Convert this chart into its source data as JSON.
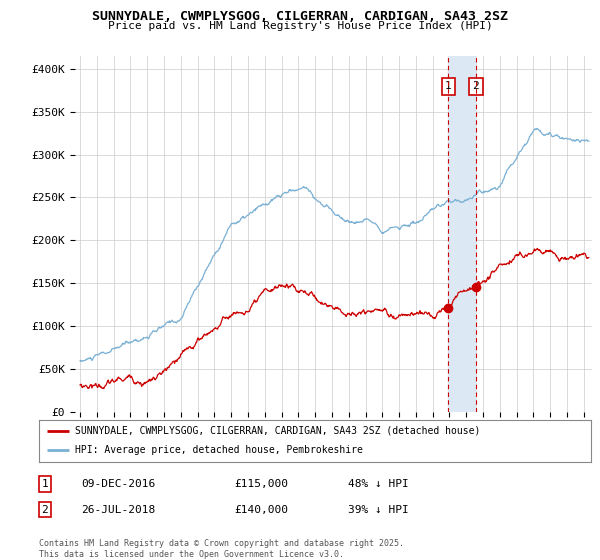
{
  "title": "SUNNYDALE, CWMPLYSGOG, CILGERRAN, CARDIGAN, SA43 2SZ",
  "subtitle": "Price paid vs. HM Land Registry's House Price Index (HPI)",
  "ylabel_ticks": [
    "£0",
    "£50K",
    "£100K",
    "£150K",
    "£200K",
    "£250K",
    "£300K",
    "£350K",
    "£400K"
  ],
  "ytick_values": [
    0,
    50000,
    100000,
    150000,
    200000,
    250000,
    300000,
    350000,
    400000
  ],
  "ylim": [
    0,
    415000
  ],
  "xlim_start": 1994.7,
  "xlim_end": 2025.5,
  "hpi_color": "#7ab0d4",
  "sale_color": "#cc0000",
  "marker1_date": 2016.94,
  "marker2_date": 2018.57,
  "marker1_price_val": 115000,
  "marker2_price_val": 140000,
  "marker1_label": "09-DEC-2016",
  "marker1_price": "£115,000",
  "marker1_pct": "48% ↓ HPI",
  "marker2_label": "26-JUL-2018",
  "marker2_price": "£140,000",
  "marker2_pct": "39% ↓ HPI",
  "legend_line1": "SUNNYDALE, CWMPLYSGOG, CILGERRAN, CARDIGAN, SA43 2SZ (detached house)",
  "legend_line2": "HPI: Average price, detached house, Pembrokeshire",
  "footer": "Contains HM Land Registry data © Crown copyright and database right 2025.\nThis data is licensed under the Open Government Licence v3.0.",
  "background_color": "#ffffff",
  "shade_color": "#dce9f5"
}
